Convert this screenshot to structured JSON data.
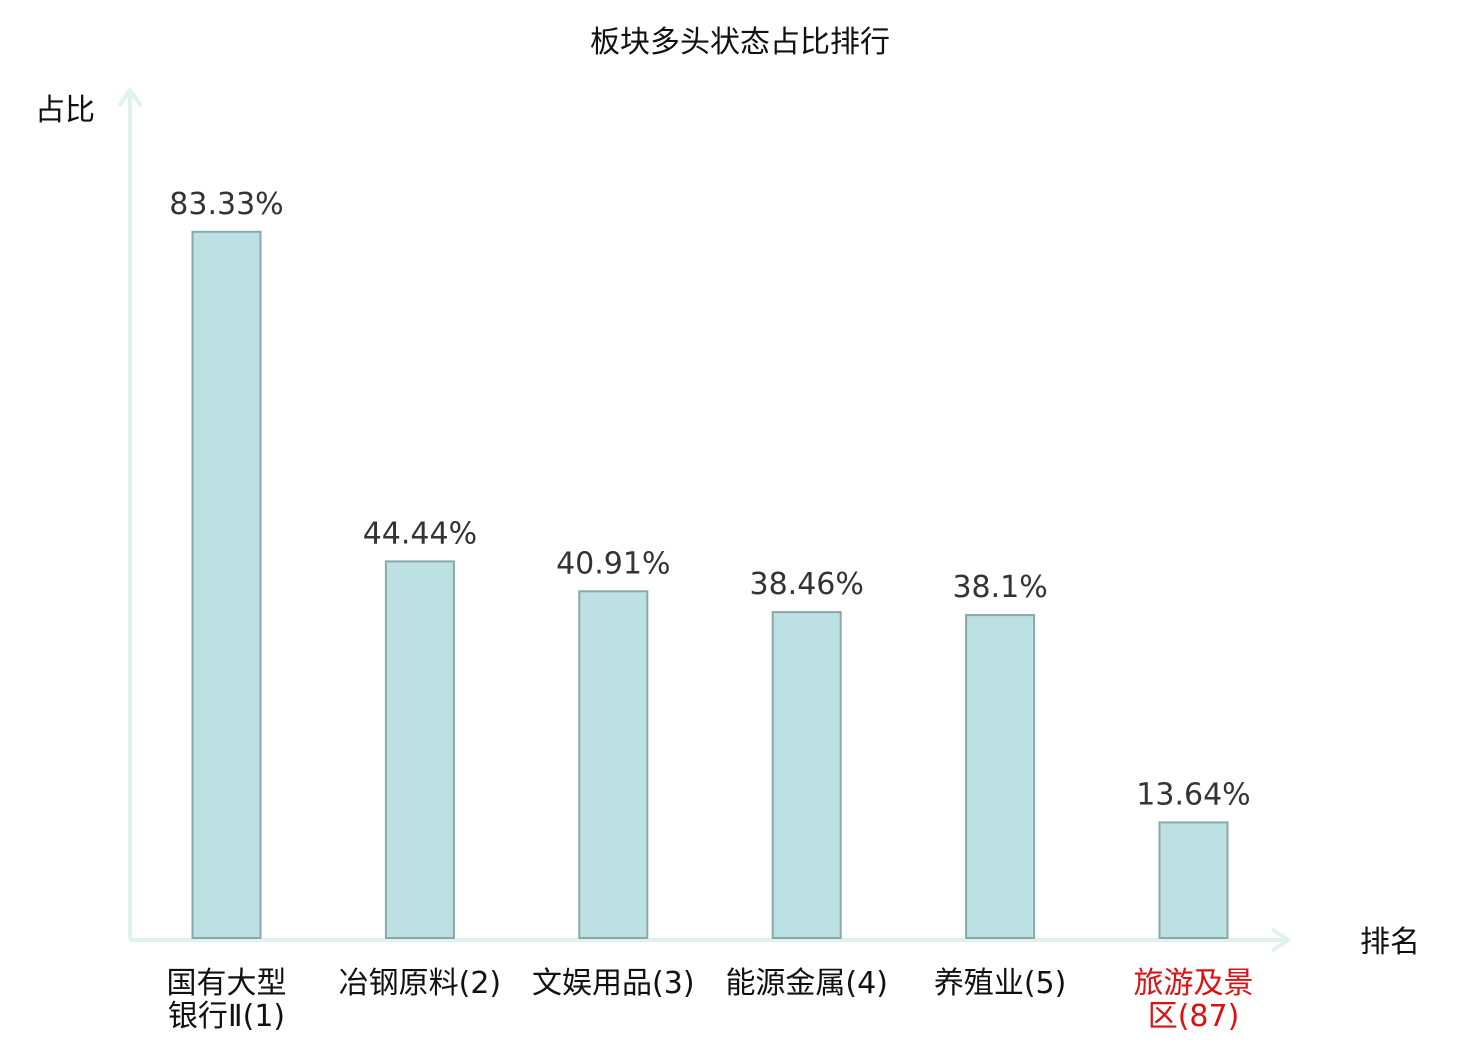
{
  "chart_data": {
    "type": "bar",
    "title": "板块多头状态占比排行",
    "xlabel": "排名",
    "ylabel": "占比",
    "categories": [
      [
        "国有大型",
        "银行Ⅱ(1)"
      ],
      [
        "冶钢原料(2)"
      ],
      [
        "文娱用品(3)"
      ],
      [
        "能源金属(4)"
      ],
      [
        "养殖业(5)"
      ],
      [
        "旅游及景",
        "区(87)"
      ]
    ],
    "values": [
      83.33,
      44.44,
      40.91,
      38.46,
      38.1,
      13.64
    ],
    "value_labels": [
      "83.33%",
      "44.44%",
      "40.91%",
      "38.46%",
      "38.1%",
      "13.64%"
    ],
    "highlight": [
      false,
      false,
      false,
      false,
      false,
      true
    ],
    "ylim": [
      0,
      100
    ],
    "grid": false,
    "legend": "none"
  },
  "colors": {
    "bar_fill": "#bde0e3",
    "bar_stroke": "#8aa8aa",
    "axis": "#e0f2ef",
    "label_normal": "#111111",
    "label_highlight": "#dd1111"
  }
}
